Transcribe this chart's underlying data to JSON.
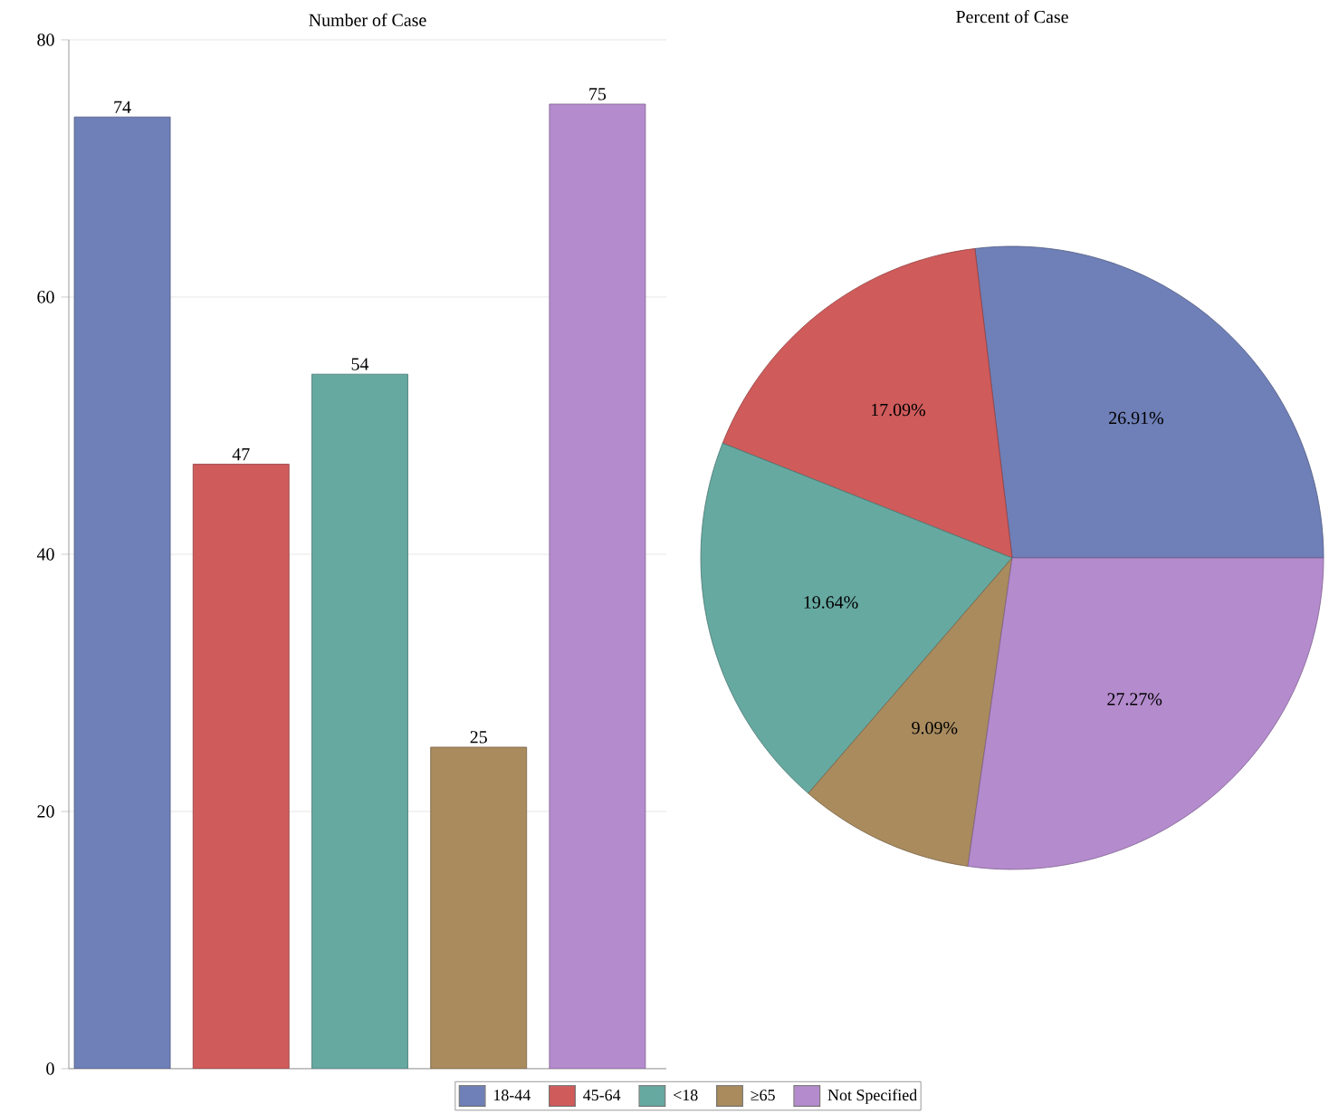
{
  "chart_data": [
    {
      "type": "bar",
      "title": "Number of Case",
      "categories": [
        null,
        null,
        null,
        null,
        null
      ],
      "values": [
        74,
        47,
        54,
        25,
        75
      ],
      "colors": [
        "#6f7fb7",
        "#d05b5b",
        "#66a9a1",
        "#a98b5e",
        "#b48bcd"
      ],
      "ylim": [
        0,
        80
      ],
      "yticks": [
        0,
        20,
        40,
        60,
        80
      ],
      "grid": "y",
      "data_labels": true
    },
    {
      "type": "pie",
      "title": "Percent of Case",
      "categories": [
        "18-44",
        "45-64",
        "<18",
        "≥65",
        "Not Specified"
      ],
      "values": [
        26.91,
        17.09,
        19.64,
        9.09,
        27.27
      ],
      "colors": [
        "#6f7fb7",
        "#d05b5b",
        "#66a9a1",
        "#a98b5e",
        "#b48bcd"
      ],
      "value_labels": [
        "26.91%",
        "17.09%",
        "19.64%",
        "9.09%",
        "27.27%"
      ],
      "legend": "bottom"
    }
  ]
}
